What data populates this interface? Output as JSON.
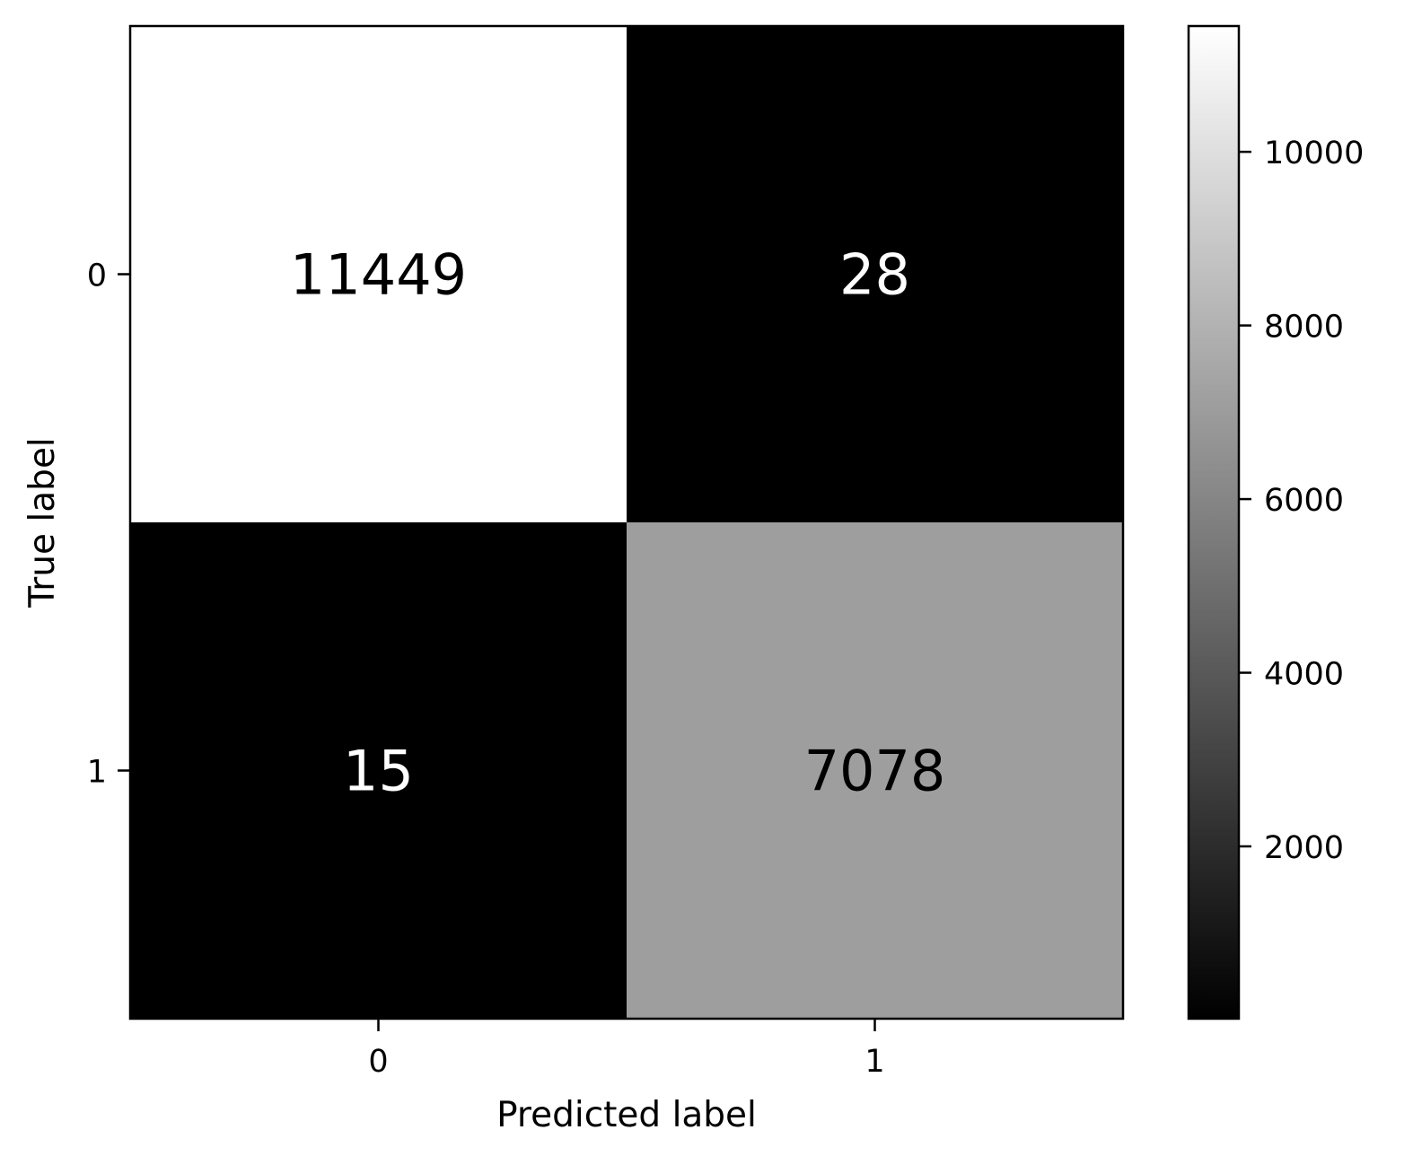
{
  "chart_data": {
    "type": "heatmap",
    "x_categories": [
      "0",
      "1"
    ],
    "y_categories": [
      "0",
      "1"
    ],
    "values": [
      [
        11449,
        28
      ],
      [
        15,
        7078
      ]
    ],
    "xlabel": "Predicted label",
    "ylabel": "True label",
    "colormap": "gray",
    "color_range": [
      15,
      11449
    ],
    "colorbar_ticks": [
      "2000",
      "4000",
      "6000",
      "8000",
      "10000"
    ],
    "colorbar_tick_values": [
      2000,
      4000,
      6000,
      8000,
      10000
    ],
    "grid": false
  }
}
